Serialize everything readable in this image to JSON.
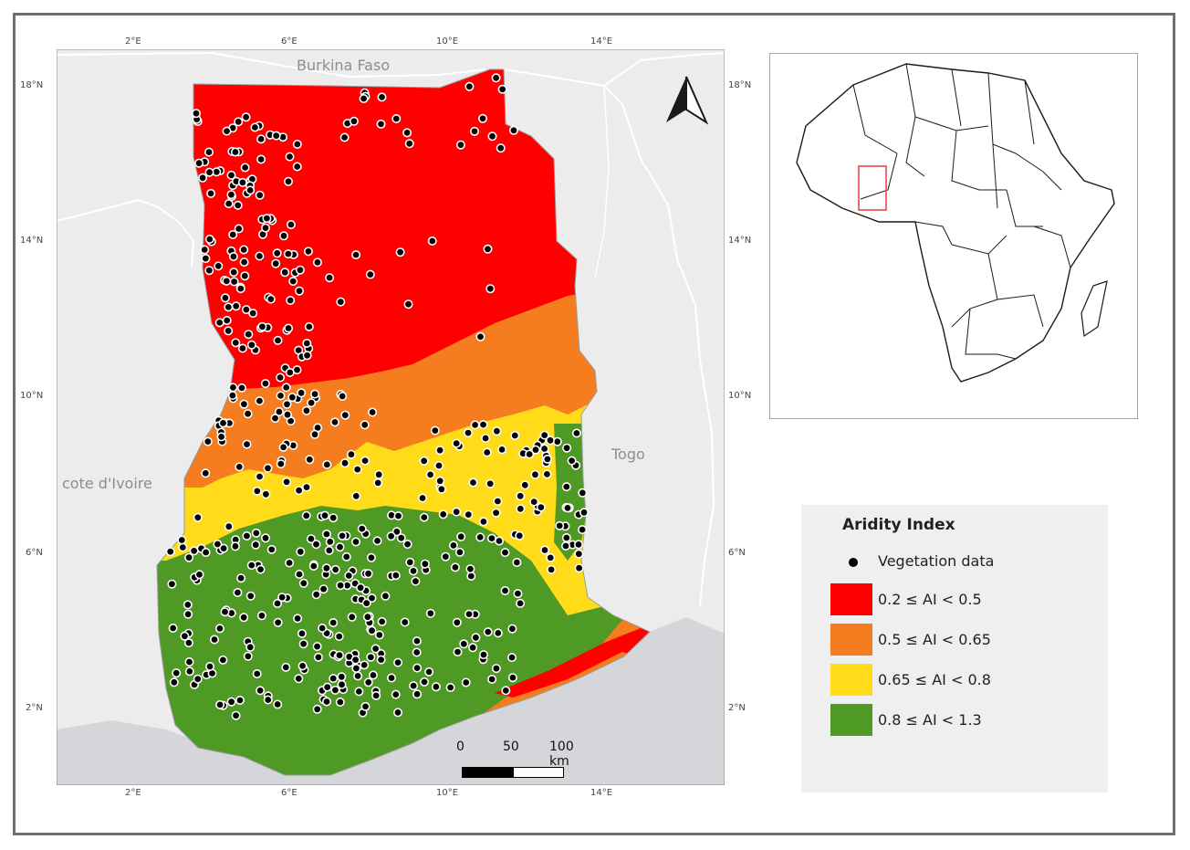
{
  "map": {
    "countries": {
      "north": "Burkina Faso",
      "west": "cote d'Ivoire",
      "east": "Togo"
    },
    "ticks": {
      "lon_labels": [
        "2°E",
        "6°E",
        "10°E",
        "14°E"
      ],
      "lat_labels": [
        "18°N",
        "14°N",
        "10°N",
        "6°N",
        "2°N"
      ]
    },
    "colors": {
      "sea": "#d4d6d9",
      "land": "#ececec",
      "border": "#ffffff",
      "dot_fill": "#000000",
      "dot_stroke": "#ffffff"
    }
  },
  "legend": {
    "title": "Aridity Index",
    "points_label": "Vegetation data",
    "classes": [
      {
        "label": "0.2 ≤ AI < 0.5",
        "color": "#ff0000"
      },
      {
        "label": "0.5 ≤ AI < 0.65",
        "color": "#f57c1f"
      },
      {
        "label": "0.65 ≤ AI < 0.8",
        "color": "#ffdb1a"
      },
      {
        "label": "0.8 ≤ AI < 1.3",
        "color": "#4f9a24"
      }
    ]
  },
  "scale_bar": {
    "labels": [
      "0",
      "50",
      "100 km"
    ]
  },
  "inset": {
    "highlight_color": "#e8474e"
  }
}
